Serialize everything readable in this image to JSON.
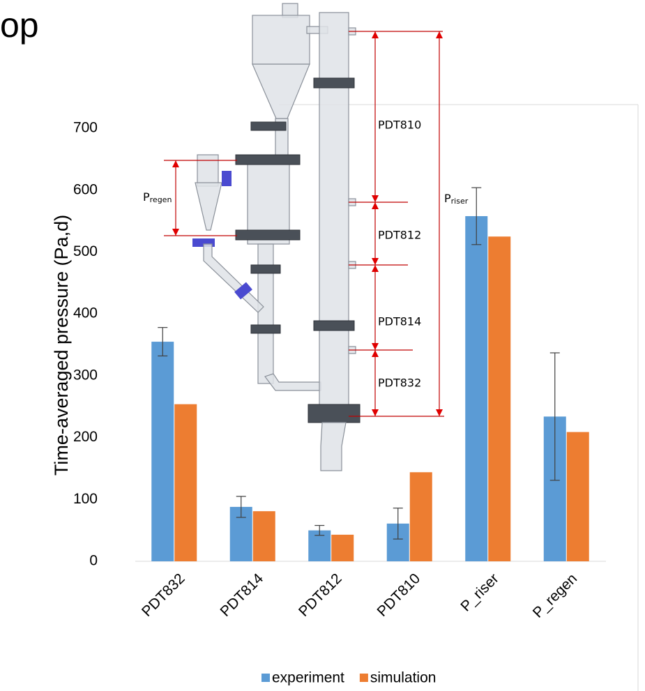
{
  "heading": "op",
  "chart_data": {
    "type": "bar",
    "y_label": "Time-averaged pressure (Pa,d)",
    "categories": [
      "PDT832",
      "PDT814",
      "PDT812",
      "PDT810",
      "P_riser",
      "P_regen"
    ],
    "series": [
      {
        "name": "experiment",
        "color": "#5b9bd5",
        "values": [
          355,
          88,
          50,
          61,
          558,
          234
        ],
        "errors": [
          23,
          17,
          8,
          25,
          46,
          103
        ]
      },
      {
        "name": "simulation",
        "color": "#ed7d31",
        "values": [
          254,
          81,
          43,
          144,
          525,
          209
        ]
      }
    ],
    "ylim": [
      0,
      700
    ],
    "yticks": [
      0,
      100,
      200,
      300,
      400,
      500,
      600,
      700
    ],
    "grid": false,
    "legend": "bottom"
  },
  "diagram": {
    "labels": [
      {
        "text": "PDT810"
      },
      {
        "text": "PDT812"
      },
      {
        "text": "PDT814"
      },
      {
        "text": "PDT832"
      }
    ],
    "p_regen": {
      "main": "P",
      "sub": "regen"
    },
    "p_riser": {
      "main": "P",
      "sub": "riser"
    }
  }
}
